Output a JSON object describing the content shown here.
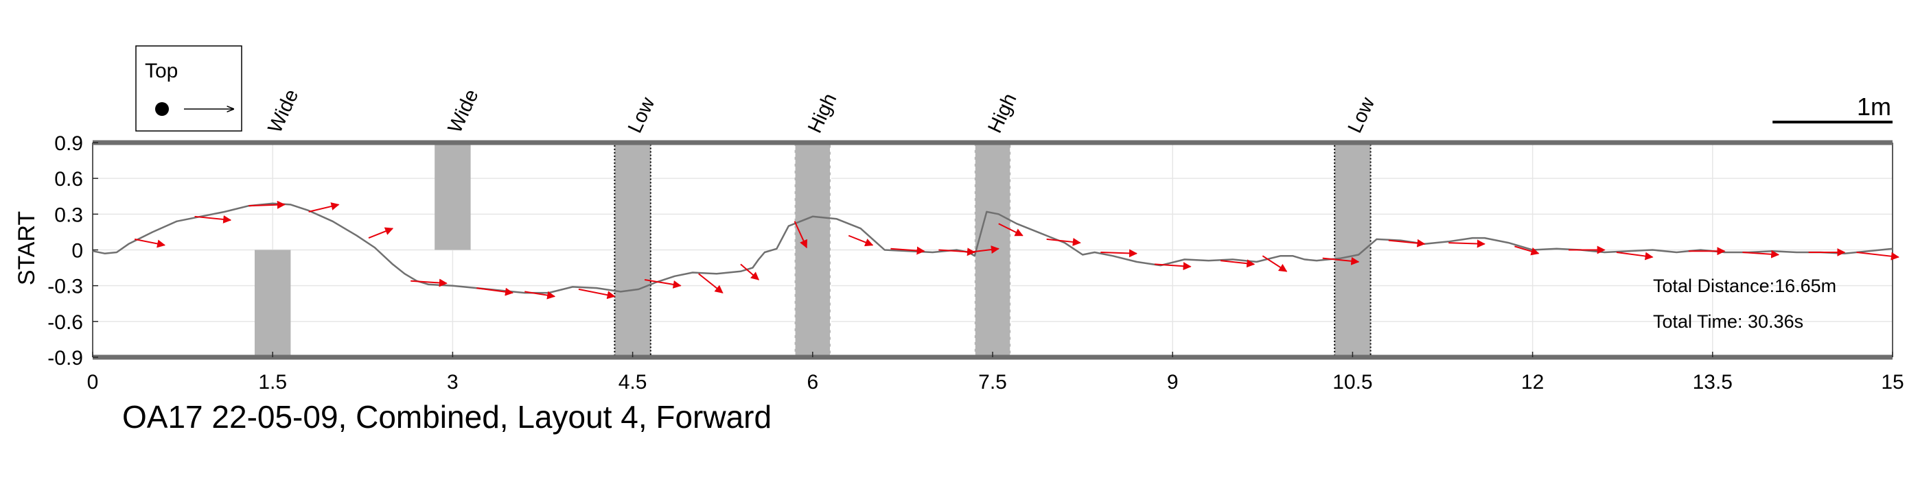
{
  "chart_data": {
    "type": "line",
    "title": "OA17 22-05-09, Combined, Layout 4, Forward",
    "xlabel": "",
    "ylabel": "START",
    "xlim": [
      0,
      15
    ],
    "ylim": [
      -0.9,
      0.9
    ],
    "xticks": [
      0,
      1.5,
      3,
      4.5,
      6,
      7.5,
      9,
      10.5,
      12,
      13.5,
      15
    ],
    "xtick_labels": [
      "0",
      "1.5",
      "3",
      "4.5",
      "6",
      "7.5",
      "9",
      "10.5",
      "12",
      "13.5",
      "15"
    ],
    "yticks": [
      0.9,
      0.6,
      0.3,
      0,
      -0.3,
      -0.6,
      -0.9
    ],
    "ytick_labels": [
      "0.9",
      "0.6",
      "0.3",
      "0",
      "-0.3",
      "-0.6",
      "-0.9"
    ],
    "grid": true,
    "legend": {
      "label": "Top",
      "position": "top-left"
    },
    "scale_bar": {
      "label": "1m",
      "length": 1
    },
    "colors": {
      "path": "#707070",
      "arrows": "#e8000b",
      "obstacle": "#b3b3b3",
      "boundary": "#6e6e6e"
    },
    "obstacles": [
      {
        "label": "Wide",
        "x_start": 1.35,
        "x_end": 1.65,
        "y_start": -0.9,
        "y_end": 0,
        "border": "none"
      },
      {
        "label": "Wide",
        "x_start": 2.85,
        "x_end": 3.15,
        "y_start": 0,
        "y_end": 0.9,
        "border": "none"
      },
      {
        "label": "Low",
        "x_start": 4.35,
        "x_end": 4.65,
        "y_start": -0.9,
        "y_end": 0.9,
        "border": "dotted-black"
      },
      {
        "label": "High",
        "x_start": 5.85,
        "x_end": 6.15,
        "y_start": -0.9,
        "y_end": 0.9,
        "border": "dashed-white"
      },
      {
        "label": "High",
        "x_start": 7.35,
        "x_end": 7.65,
        "y_start": -0.9,
        "y_end": 0.9,
        "border": "dashed-white"
      },
      {
        "label": "Low",
        "x_start": 10.35,
        "x_end": 10.65,
        "y_start": -0.9,
        "y_end": 0.9,
        "border": "dotted-black"
      }
    ],
    "series": [
      {
        "x": [
          0,
          0.1,
          0.2,
          0.3,
          0.5,
          0.7,
          0.9,
          1.1,
          1.3,
          1.5,
          1.65,
          1.8,
          2.0,
          2.2,
          2.35,
          2.5,
          2.6,
          2.7,
          2.8,
          3.0,
          3.3,
          3.6,
          3.8,
          4.0,
          4.2,
          4.4,
          4.55,
          4.7,
          4.85,
          5.0,
          5.2,
          5.4,
          5.5,
          5.55,
          5.6,
          5.7,
          5.8,
          6.0,
          6.2,
          6.4,
          6.6,
          6.8,
          7.0,
          7.2,
          7.3,
          7.35,
          7.45,
          7.55,
          7.7,
          7.9,
          8.1,
          8.25,
          8.35,
          8.5,
          8.7,
          8.9,
          9.1,
          9.3,
          9.5,
          9.7,
          9.9,
          10.0,
          10.1,
          10.2,
          10.3,
          10.4,
          10.55,
          10.7,
          10.9,
          11.1,
          11.3,
          11.5,
          11.6,
          11.8,
          12.0,
          12.2,
          12.4,
          12.6,
          12.8,
          13.0,
          13.2,
          13.4,
          13.6,
          13.8,
          14.0,
          14.2,
          14.4,
          14.6,
          14.8,
          15.0
        ],
        "y": [
          -0.01,
          -0.03,
          -0.02,
          0.05,
          0.15,
          0.24,
          0.28,
          0.32,
          0.37,
          0.39,
          0.38,
          0.33,
          0.24,
          0.12,
          0.02,
          -0.12,
          -0.2,
          -0.26,
          -0.29,
          -0.3,
          -0.33,
          -0.36,
          -0.36,
          -0.31,
          -0.32,
          -0.35,
          -0.33,
          -0.27,
          -0.22,
          -0.19,
          -0.2,
          -0.18,
          -0.15,
          -0.08,
          -0.02,
          0.01,
          0.2,
          0.28,
          0.26,
          0.18,
          0.0,
          -0.01,
          -0.02,
          0.0,
          -0.02,
          -0.05,
          0.32,
          0.3,
          0.22,
          0.14,
          0.06,
          -0.04,
          -0.02,
          -0.05,
          -0.1,
          -0.13,
          -0.08,
          -0.09,
          -0.08,
          -0.1,
          -0.05,
          -0.05,
          -0.08,
          -0.09,
          -0.08,
          -0.07,
          -0.04,
          0.09,
          0.08,
          0.05,
          0.07,
          0.1,
          0.1,
          0.06,
          0.0,
          0.01,
          0.0,
          -0.02,
          -0.01,
          0.0,
          -0.02,
          0.0,
          -0.02,
          -0.02,
          -0.01,
          -0.02,
          -0.02,
          -0.03,
          -0.01,
          0.01
        ]
      }
    ],
    "arrows": [
      {
        "x": 0.35,
        "y": 0.09,
        "dx": 0.25,
        "dy": -0.05
      },
      {
        "x": 0.85,
        "y": 0.28,
        "dx": 0.3,
        "dy": -0.03
      },
      {
        "x": 1.3,
        "y": 0.37,
        "dx": 0.3,
        "dy": 0.01
      },
      {
        "x": 1.8,
        "y": 0.32,
        "dx": 0.25,
        "dy": 0.06
      },
      {
        "x": 2.3,
        "y": 0.1,
        "dx": 0.2,
        "dy": 0.08
      },
      {
        "x": 2.65,
        "y": -0.26,
        "dx": 0.3,
        "dy": -0.02
      },
      {
        "x": 3.2,
        "y": -0.32,
        "dx": 0.3,
        "dy": -0.04
      },
      {
        "x": 3.6,
        "y": -0.35,
        "dx": 0.25,
        "dy": -0.04
      },
      {
        "x": 4.05,
        "y": -0.33,
        "dx": 0.3,
        "dy": -0.06
      },
      {
        "x": 4.6,
        "y": -0.25,
        "dx": 0.3,
        "dy": -0.05
      },
      {
        "x": 5.05,
        "y": -0.2,
        "dx": 0.2,
        "dy": -0.16
      },
      {
        "x": 5.4,
        "y": -0.12,
        "dx": 0.15,
        "dy": -0.13
      },
      {
        "x": 5.85,
        "y": 0.24,
        "dx": 0.1,
        "dy": -0.22
      },
      {
        "x": 6.3,
        "y": 0.12,
        "dx": 0.2,
        "dy": -0.08
      },
      {
        "x": 6.65,
        "y": 0.01,
        "dx": 0.28,
        "dy": -0.02
      },
      {
        "x": 7.05,
        "y": 0.0,
        "dx": 0.3,
        "dy": -0.02
      },
      {
        "x": 7.3,
        "y": -0.02,
        "dx": 0.25,
        "dy": 0.03
      },
      {
        "x": 7.55,
        "y": 0.22,
        "dx": 0.2,
        "dy": -0.1
      },
      {
        "x": 7.95,
        "y": 0.09,
        "dx": 0.28,
        "dy": -0.03
      },
      {
        "x": 8.4,
        "y": -0.02,
        "dx": 0.3,
        "dy": -0.01
      },
      {
        "x": 8.85,
        "y": -0.12,
        "dx": 0.3,
        "dy": -0.02
      },
      {
        "x": 9.4,
        "y": -0.09,
        "dx": 0.28,
        "dy": -0.03
      },
      {
        "x": 9.75,
        "y": -0.05,
        "dx": 0.2,
        "dy": -0.13
      },
      {
        "x": 10.25,
        "y": -0.07,
        "dx": 0.3,
        "dy": -0.03
      },
      {
        "x": 10.8,
        "y": 0.08,
        "dx": 0.3,
        "dy": -0.03
      },
      {
        "x": 11.3,
        "y": 0.06,
        "dx": 0.3,
        "dy": -0.01
      },
      {
        "x": 11.85,
        "y": 0.03,
        "dx": 0.2,
        "dy": -0.06
      },
      {
        "x": 12.3,
        "y": 0.0,
        "dx": 0.3,
        "dy": 0.0
      },
      {
        "x": 12.7,
        "y": -0.02,
        "dx": 0.3,
        "dy": -0.04
      },
      {
        "x": 13.3,
        "y": -0.01,
        "dx": 0.3,
        "dy": 0.0
      },
      {
        "x": 13.75,
        "y": -0.02,
        "dx": 0.3,
        "dy": -0.02
      },
      {
        "x": 14.3,
        "y": -0.02,
        "dx": 0.3,
        "dy": 0.0
      },
      {
        "x": 14.7,
        "y": -0.02,
        "dx": 0.35,
        "dy": -0.04
      }
    ],
    "annotations": [
      "Total Distance:16.65m",
      "Total Time: 30.36s"
    ]
  }
}
